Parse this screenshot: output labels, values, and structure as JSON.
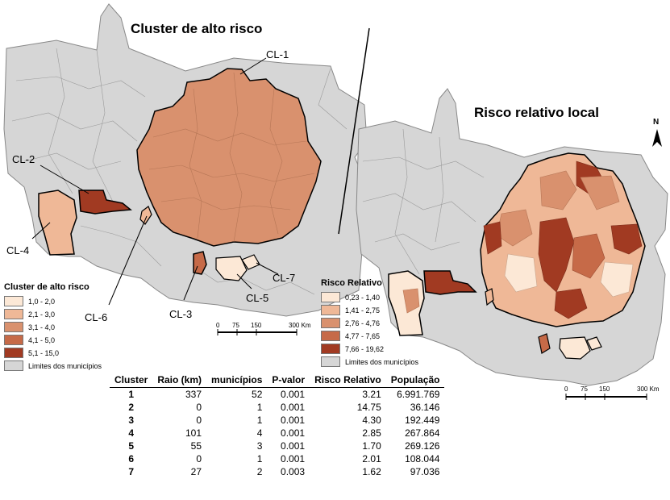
{
  "left_map": {
    "title": "Cluster de alto risco",
    "cluster_labels": [
      "CL-1",
      "CL-2",
      "CL-3",
      "CL-4",
      "CL-5",
      "CL-6",
      "CL-7"
    ],
    "legend": {
      "title": "Cluster de alto risco",
      "items": [
        {
          "label": "1,0 - 2,0",
          "color": "#fce8d6"
        },
        {
          "label": "2,1 - 3,0",
          "color": "#efb897"
        },
        {
          "label": "3,1 - 4,0",
          "color": "#d9916e"
        },
        {
          "label": "4,1 - 5,0",
          "color": "#c66a48"
        },
        {
          "label": "5,1 - 15,0",
          "color": "#a13a22"
        }
      ],
      "boundary_label": "Limites dos municípios"
    },
    "scale": {
      "ticks": [
        "0",
        "75",
        "150",
        "300 Km"
      ]
    }
  },
  "right_map": {
    "title": "Risco relativo local",
    "north": "N",
    "legend": {
      "title": "Risco Relativo",
      "items": [
        {
          "label": "0,23 - 1,40",
          "color": "#fce8d6"
        },
        {
          "label": "1,41 - 2,75",
          "color": "#efb897"
        },
        {
          "label": "2,76 - 4,76",
          "color": "#d9916e"
        },
        {
          "label": "4,77 - 7,65",
          "color": "#c66a48"
        },
        {
          "label": "7,66 - 19,62",
          "color": "#a13a22"
        }
      ],
      "boundary_label": "Limites dos municípios"
    },
    "scale": {
      "ticks": [
        "0",
        "75",
        "150",
        "300 Km"
      ]
    }
  },
  "colors": {
    "gray": "#d6d6d6",
    "border": "#8a8a8a",
    "cluster": "#d9916e"
  },
  "table": {
    "headers": [
      "Cluster",
      "Raio (km)",
      "municípios",
      "P-valor",
      "Risco Relativo",
      "População"
    ],
    "rows": [
      [
        "1",
        "337",
        "52",
        "0.001",
        "3.21",
        "6.991.769"
      ],
      [
        "2",
        "0",
        "1",
        "0.001",
        "14.75",
        "36.146"
      ],
      [
        "3",
        "0",
        "1",
        "0.001",
        "4.30",
        "192.449"
      ],
      [
        "4",
        "101",
        "4",
        "0.001",
        "2.85",
        "267.864"
      ],
      [
        "5",
        "55",
        "3",
        "0.001",
        "1.70",
        "269.126"
      ],
      [
        "6",
        "0",
        "1",
        "0.001",
        "2.01",
        "108.044"
      ],
      [
        "7",
        "27",
        "2",
        "0.003",
        "1.62",
        "97.036"
      ]
    ]
  }
}
